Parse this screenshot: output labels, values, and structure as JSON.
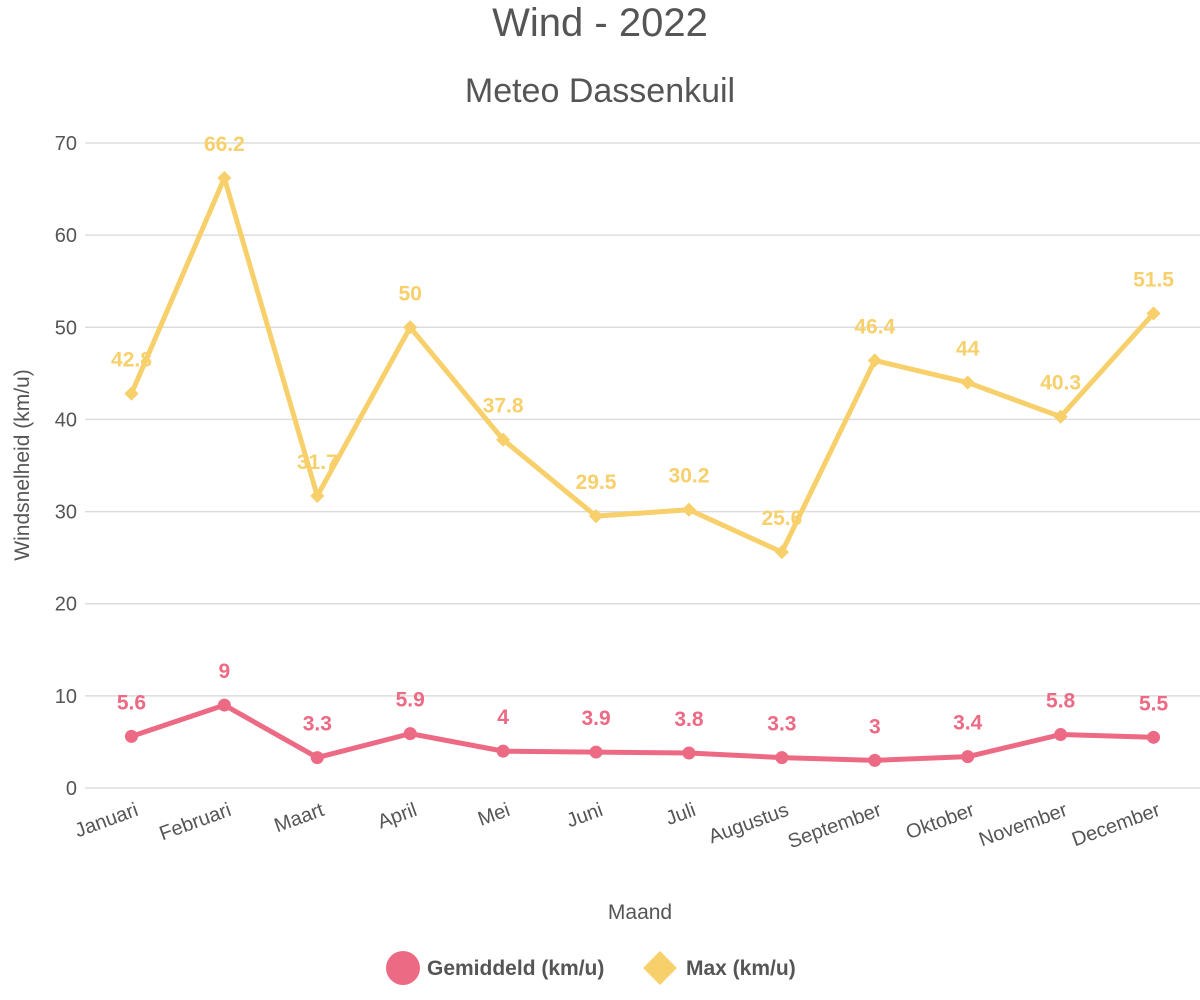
{
  "chart_data": {
    "type": "line",
    "title": "Wind - 2022",
    "subtitle": "Meteo Dassenkuil",
    "xlabel": "Maand",
    "ylabel": "Windsnelheid (km/u)",
    "ylim": [
      0,
      70
    ],
    "yticks": [
      0,
      10,
      20,
      30,
      40,
      50,
      60,
      70
    ],
    "grid": true,
    "legend_position": "bottom",
    "categories": [
      "Januari",
      "Februari",
      "Maart",
      "April",
      "Mei",
      "Juni",
      "Juli",
      "Augustus",
      "September",
      "Oktober",
      "November",
      "December"
    ],
    "series": [
      {
        "name": "Gemiddeld (km/u)",
        "color": "#ed6a85",
        "marker": "circle",
        "values": [
          5.6,
          9,
          3.3,
          5.9,
          4,
          3.9,
          3.8,
          3.3,
          3,
          3.4,
          5.8,
          5.5
        ]
      },
      {
        "name": "Max (km/u)",
        "color": "#f7d06b",
        "marker": "diamond",
        "values": [
          42.8,
          66.2,
          31.7,
          50,
          37.8,
          29.5,
          30.2,
          25.6,
          46.4,
          44,
          40.3,
          51.5
        ]
      }
    ]
  }
}
